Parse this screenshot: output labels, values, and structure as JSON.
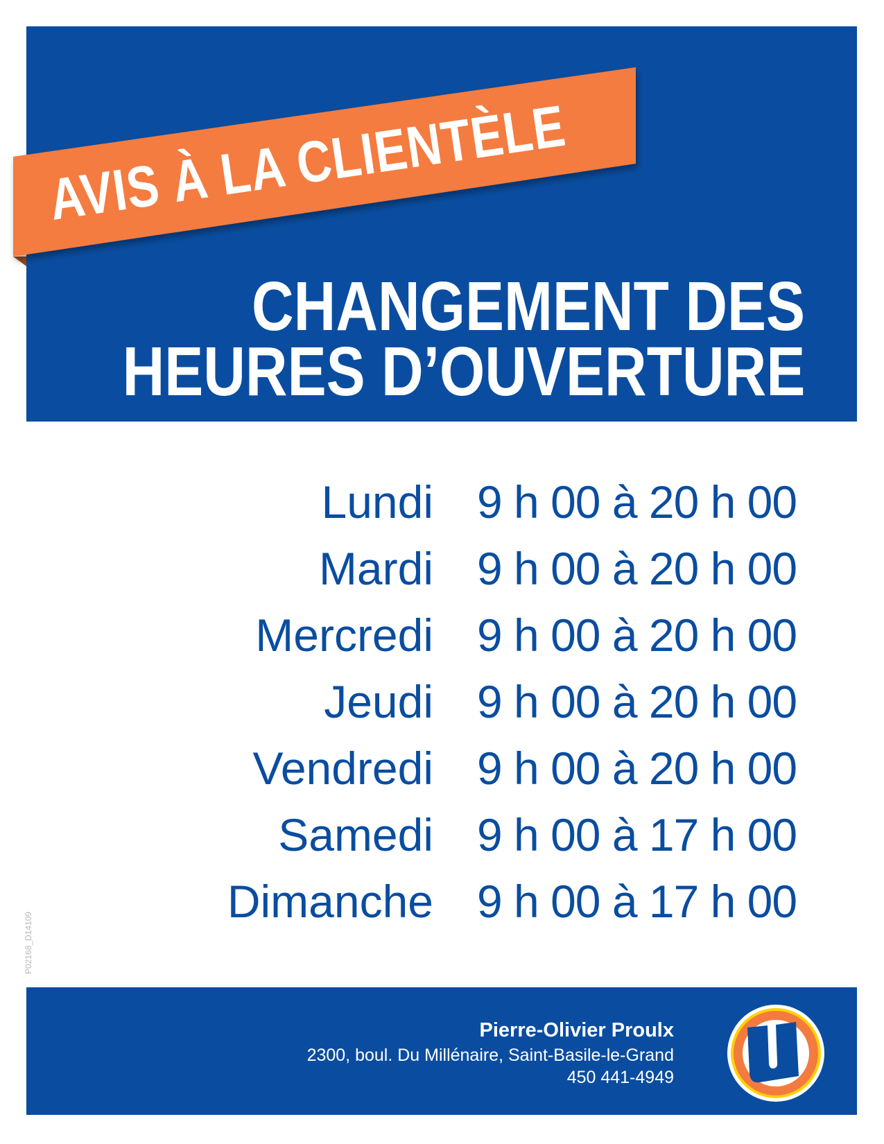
{
  "banner": {
    "text": "AVIS À LA CLIENTÈLE"
  },
  "title": {
    "line1": "CHANGEMENT DES",
    "line2": "HEURES D’OUVERTURE"
  },
  "hours": [
    {
      "day": "Lundi",
      "time": "9 h 00 à 20 h 00"
    },
    {
      "day": "Mardi",
      "time": "9 h 00 à 20 h 00"
    },
    {
      "day": "Mercredi",
      "time": "9 h 00 à 20 h 00"
    },
    {
      "day": "Jeudi",
      "time": "9 h 00 à 20 h 00"
    },
    {
      "day": "Vendredi",
      "time": "9 h 00 à 20 h 00"
    },
    {
      "day": "Samedi",
      "time": "9 h 00 à 17 h 00"
    },
    {
      "day": "Dimanche",
      "time": "9 h 00 à 17 h 00"
    }
  ],
  "doc_code": "P02168_D14109",
  "footer": {
    "name": "Pierre-Olivier Proulx",
    "address": "2300, boul. Du Millénaire, Saint-Basile-le-Grand",
    "phone": "450 441-4949",
    "logo_letter": "U"
  },
  "colors": {
    "blue": "#0a4da0",
    "orange": "#f47b40",
    "yellow": "#ffd200"
  }
}
